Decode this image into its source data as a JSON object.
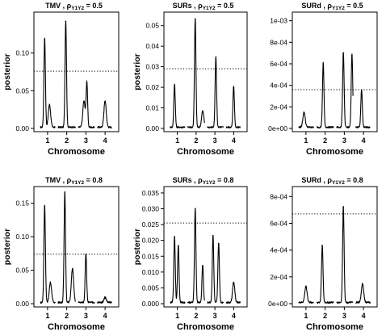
{
  "chart_data": [
    {
      "type": "line",
      "title_main": "TMV",
      "title_param": "0.5",
      "xlabel": "Chromosome",
      "ylabel": "posterior",
      "x_ticks": [
        "1",
        "2",
        "3",
        "4"
      ],
      "y_ticks": [
        "0.00",
        "0.05",
        "0.10"
      ],
      "y_tick_values": [
        0,
        0.05,
        0.1
      ],
      "ylim": [
        0,
        0.15
      ],
      "threshold": 0.076,
      "peaks": [
        {
          "chromosome": 1,
          "offset": -0.15,
          "posterior": 0.118
        },
        {
          "chromosome": 1,
          "offset": 0.1,
          "posterior": 0.03
        },
        {
          "chromosome": 2,
          "offset": -0.05,
          "posterior": 0.142
        },
        {
          "chromosome": 3,
          "offset": -0.1,
          "posterior": 0.035
        },
        {
          "chromosome": 3,
          "offset": 0.05,
          "posterior": 0.06
        },
        {
          "chromosome": 4,
          "offset": 0.0,
          "posterior": 0.035
        }
      ]
    },
    {
      "type": "line",
      "title_main": "SURs",
      "title_param": "0.5",
      "xlabel": "Chromosome",
      "ylabel": "posterior",
      "x_ticks": [
        "1",
        "2",
        "3",
        "4"
      ],
      "y_ticks": [
        "0.00",
        "0.01",
        "0.02",
        "0.03",
        "0.04",
        "0.05"
      ],
      "y_tick_values": [
        0,
        0.01,
        0.02,
        0.03,
        0.04,
        0.05
      ],
      "ylim": [
        0,
        0.055
      ],
      "threshold": 0.029,
      "peaks": [
        {
          "chromosome": 1,
          "offset": -0.15,
          "posterior": 0.021
        },
        {
          "chromosome": 2,
          "offset": -0.05,
          "posterior": 0.053
        },
        {
          "chromosome": 2,
          "offset": 0.35,
          "posterior": 0.008
        },
        {
          "chromosome": 3,
          "offset": 0.05,
          "posterior": 0.034
        },
        {
          "chromosome": 4,
          "offset": 0.0,
          "posterior": 0.02
        }
      ]
    },
    {
      "type": "line",
      "title_main": "SURd",
      "title_param": "0.5",
      "xlabel": "Chromosome",
      "ylabel": "",
      "x_ticks": [
        "1",
        "2",
        "3",
        "4"
      ],
      "y_ticks": [
        "0e+00",
        "2e-04",
        "4e-04",
        "6e-04",
        "8e-04",
        "1e-03"
      ],
      "y_tick_values": [
        0,
        0.0002,
        0.0004,
        0.0006,
        0.0008,
        0.001
      ],
      "ylim": [
        0,
        0.00105
      ],
      "threshold": 0.00036,
      "peaks": [
        {
          "chromosome": 1,
          "offset": -0.1,
          "posterior": 0.00014
        },
        {
          "chromosome": 2,
          "offset": -0.1,
          "posterior": 0.0006
        },
        {
          "chromosome": 3,
          "offset": -0.05,
          "posterior": 0.0007
        },
        {
          "chromosome": 3,
          "offset": 0.4,
          "posterior": 0.00068
        },
        {
          "chromosome": 4,
          "offset": -0.1,
          "posterior": 0.00035
        }
      ]
    },
    {
      "type": "line",
      "title_main": "TMV",
      "title_param": "0.8",
      "xlabel": "Chromosome",
      "ylabel": "posterior",
      "x_ticks": [
        "1",
        "2",
        "3",
        "4"
      ],
      "y_ticks": [
        "0.00",
        "0.05",
        "0.10",
        "0.15"
      ],
      "y_tick_values": [
        0,
        0.05,
        0.1,
        0.15
      ],
      "ylim": [
        0,
        0.17
      ],
      "threshold": 0.074,
      "peaks": [
        {
          "chromosome": 1,
          "offset": -0.15,
          "posterior": 0.145
        },
        {
          "chromosome": 1,
          "offset": 0.15,
          "posterior": 0.03
        },
        {
          "chromosome": 2,
          "offset": -0.1,
          "posterior": 0.165
        },
        {
          "chromosome": 2,
          "offset": 0.3,
          "posterior": 0.05
        },
        {
          "chromosome": 3,
          "offset": 0.0,
          "posterior": 0.073
        },
        {
          "chromosome": 4,
          "offset": 0.0,
          "posterior": 0.008
        }
      ]
    },
    {
      "type": "line",
      "title_main": "SURs",
      "title_param": "0.8",
      "xlabel": "Chromosome",
      "ylabel": "posterior",
      "x_ticks": [
        "1",
        "2",
        "3",
        "4"
      ],
      "y_ticks": [
        "0.000",
        "0.005",
        "0.010",
        "0.015",
        "0.020",
        "0.025",
        "0.030",
        "0.035"
      ],
      "y_tick_values": [
        0,
        0.005,
        0.01,
        0.015,
        0.02,
        0.025,
        0.03,
        0.035
      ],
      "ylim": [
        0,
        0.036
      ],
      "threshold": 0.0255,
      "peaks": [
        {
          "chromosome": 1,
          "offset": -0.15,
          "posterior": 0.021
        },
        {
          "chromosome": 1,
          "offset": 0.05,
          "posterior": 0.018
        },
        {
          "chromosome": 2,
          "offset": -0.05,
          "posterior": 0.03
        },
        {
          "chromosome": 2,
          "offset": 0.35,
          "posterior": 0.012
        },
        {
          "chromosome": 3,
          "offset": -0.1,
          "posterior": 0.0215
        },
        {
          "chromosome": 3,
          "offset": 0.2,
          "posterior": 0.019
        },
        {
          "chromosome": 4,
          "offset": 0.0,
          "posterior": 0.0065
        }
      ]
    },
    {
      "type": "line",
      "title_main": "SURd",
      "title_param": "0.8",
      "xlabel": "Chromosome",
      "ylabel": "",
      "x_ticks": [
        "1",
        "2",
        "3",
        "4"
      ],
      "y_ticks": [
        "0e+00",
        "2e-04",
        "4e-04",
        "6e-04",
        "8e-04"
      ],
      "y_tick_values": [
        0,
        0.0002,
        0.0004,
        0.0006,
        0.0008
      ],
      "ylim": [
        0,
        0.00085
      ],
      "threshold": 0.00067,
      "peaks": [
        {
          "chromosome": 1,
          "offset": 0.0,
          "posterior": 0.00012
        },
        {
          "chromosome": 2,
          "offset": -0.15,
          "posterior": 0.00043
        },
        {
          "chromosome": 3,
          "offset": -0.05,
          "posterior": 0.00072
        },
        {
          "chromosome": 4,
          "offset": -0.05,
          "posterior": 0.00014
        }
      ]
    }
  ]
}
